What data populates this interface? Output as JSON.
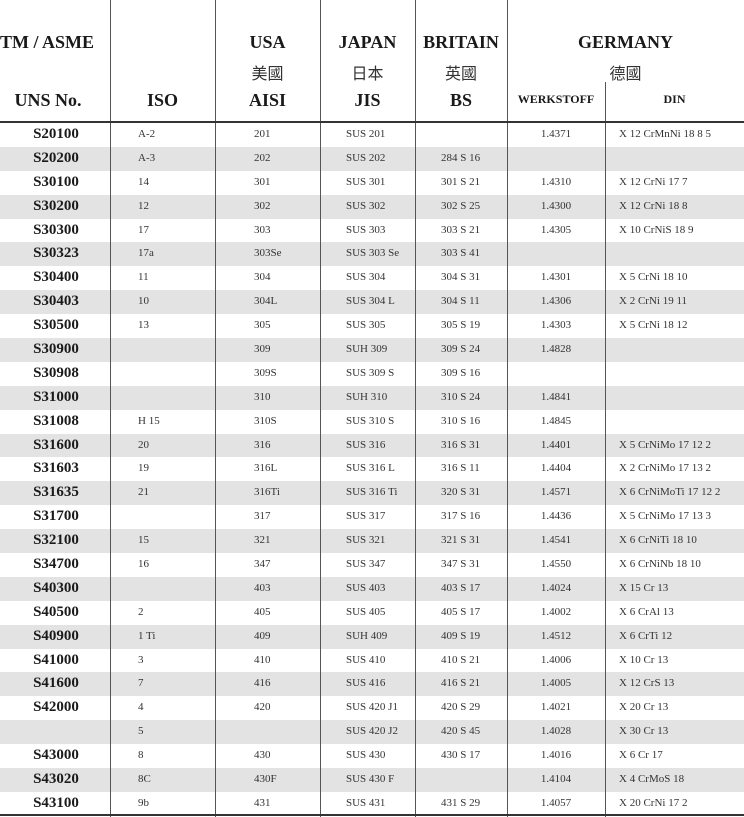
{
  "header": {
    "col_uns_top": "TM / ASME",
    "col_uns": "UNS No.",
    "col_iso": "ISO",
    "usa": "USA",
    "usa_cn": "美國",
    "aisi": "AISI",
    "japan": "JAPAN",
    "japan_cn": "日本",
    "jis": "JIS",
    "britain": "BRITAIN",
    "britain_cn": "英國",
    "bs": "BS",
    "germany": "GERMANY",
    "germany_cn": "德國",
    "werkstoff": "WERKSTOFF",
    "din": "DIN"
  },
  "rows": [
    {
      "uns": "S20100",
      "iso": "A-2",
      "aisi": "201",
      "jis": "SUS 201",
      "bs": "",
      "wk": "1.4371",
      "din": "X 12 CrMnNi 18 8 5"
    },
    {
      "uns": "S20200",
      "iso": "A-3",
      "aisi": "202",
      "jis": "SUS 202",
      "bs": "284 S 16",
      "wk": "",
      "din": ""
    },
    {
      "uns": "S30100",
      "iso": "14",
      "aisi": "301",
      "jis": "SUS 301",
      "bs": "301 S 21",
      "wk": "1.4310",
      "din": "X 12 CrNi 17 7"
    },
    {
      "uns": "S30200",
      "iso": "12",
      "aisi": "302",
      "jis": "SUS 302",
      "bs": "302 S 25",
      "wk": "1.4300",
      "din": "X 12 CrNi 18 8"
    },
    {
      "uns": "S30300",
      "iso": "17",
      "aisi": "303",
      "jis": "SUS 303",
      "bs": "303 S 21",
      "wk": "1.4305",
      "din": "X 10 CrNiS 18 9"
    },
    {
      "uns": "S30323",
      "iso": "17a",
      "aisi": "303Se",
      "jis": "SUS 303 Se",
      "bs": "303 S 41",
      "wk": "",
      "din": ""
    },
    {
      "uns": "S30400",
      "iso": "11",
      "aisi": "304",
      "jis": "SUS 304",
      "bs": "304 S 31",
      "wk": "1.4301",
      "din": "X 5 CrNi 18 10"
    },
    {
      "uns": "S30403",
      "iso": "10",
      "aisi": "304L",
      "jis": "SUS 304 L",
      "bs": "304 S 11",
      "wk": "1.4306",
      "din": "X 2 CrNi 19 11"
    },
    {
      "uns": "S30500",
      "iso": "13",
      "aisi": "305",
      "jis": "SUS 305",
      "bs": "305 S 19",
      "wk": "1.4303",
      "din": "X 5 CrNi 18 12"
    },
    {
      "uns": "S30900",
      "iso": "",
      "aisi": "309",
      "jis": "SUH 309",
      "bs": "309 S 24",
      "wk": "1.4828",
      "din": ""
    },
    {
      "uns": "S30908",
      "iso": "",
      "aisi": "309S",
      "jis": "SUS 309 S",
      "bs": "309 S 16",
      "wk": "",
      "din": ""
    },
    {
      "uns": "S31000",
      "iso": "",
      "aisi": "310",
      "jis": "SUH 310",
      "bs": "310 S 24",
      "wk": "1.4841",
      "din": ""
    },
    {
      "uns": "S31008",
      "iso": "H 15",
      "aisi": "310S",
      "jis": "SUS 310 S",
      "bs": "310 S 16",
      "wk": "1.4845",
      "din": ""
    },
    {
      "uns": "S31600",
      "iso": "20",
      "aisi": "316",
      "jis": "SUS 316",
      "bs": "316 S 31",
      "wk": "1.4401",
      "din": "X 5 CrNiMo 17 12 2"
    },
    {
      "uns": "S31603",
      "iso": "19",
      "aisi": "316L",
      "jis": "SUS 316 L",
      "bs": "316 S 11",
      "wk": "1.4404",
      "din": "X 2 CrNiMo 17 13 2"
    },
    {
      "uns": "S31635",
      "iso": "21",
      "aisi": "316Ti",
      "jis": "SUS 316 Ti",
      "bs": "320 S 31",
      "wk": "1.4571",
      "din": "X 6 CrNiMoTi 17 12 2"
    },
    {
      "uns": "S31700",
      "iso": "",
      "aisi": "317",
      "jis": "SUS 317",
      "bs": "317 S 16",
      "wk": "1.4436",
      "din": "X 5 CrNiMo 17 13 3"
    },
    {
      "uns": "S32100",
      "iso": "15",
      "aisi": "321",
      "jis": "SUS 321",
      "bs": "321 S 31",
      "wk": "1.4541",
      "din": "X 6 CrNiTi 18 10"
    },
    {
      "uns": "S34700",
      "iso": "16",
      "aisi": "347",
      "jis": "SUS 347",
      "bs": "347 S 31",
      "wk": "1.4550",
      "din": "X 6 CrNiNb 18 10"
    },
    {
      "uns": "S40300",
      "iso": "",
      "aisi": "403",
      "jis": "SUS 403",
      "bs": "403 S 17",
      "wk": "1.4024",
      "din": "X 15 Cr 13"
    },
    {
      "uns": "S40500",
      "iso": "2",
      "aisi": "405",
      "jis": "SUS 405",
      "bs": "405 S 17",
      "wk": "1.4002",
      "din": "X 6 CrAl 13"
    },
    {
      "uns": "S40900",
      "iso": "1 Ti",
      "aisi": "409",
      "jis": "SUH 409",
      "bs": "409 S 19",
      "wk": "1.4512",
      "din": "X 6 CrTi 12"
    },
    {
      "uns": "S41000",
      "iso": "3",
      "aisi": "410",
      "jis": "SUS 410",
      "bs": "410 S 21",
      "wk": "1.4006",
      "din": "X 10 Cr 13"
    },
    {
      "uns": "S41600",
      "iso": "7",
      "aisi": "416",
      "jis": "SUS 416",
      "bs": "416 S 21",
      "wk": "1.4005",
      "din": "X 12 CrS 13"
    },
    {
      "uns": "S42000",
      "iso": "4",
      "aisi": "420",
      "jis": "SUS 420 J1",
      "bs": "420 S 29",
      "wk": "1.4021",
      "din": "X 20 Cr 13"
    },
    {
      "uns": "",
      "iso": "5",
      "aisi": "",
      "jis": "SUS 420 J2",
      "bs": "420 S 45",
      "wk": "1.4028",
      "din": "X 30 Cr 13"
    },
    {
      "uns": "S43000",
      "iso": "8",
      "aisi": "430",
      "jis": "SUS 430",
      "bs": "430 S 17",
      "wk": "1.4016",
      "din": "X 6 Cr 17"
    },
    {
      "uns": "S43020",
      "iso": "8C",
      "aisi": "430F",
      "jis": "SUS 430 F",
      "bs": "",
      "wk": "1.4104",
      "din": "X 4 CrMoS 18"
    },
    {
      "uns": "S43100",
      "iso": "9b",
      "aisi": "431",
      "jis": "SUS 431",
      "bs": "431 S 29",
      "wk": "1.4057",
      "din": "X 20 CrNi 17  2"
    }
  ]
}
